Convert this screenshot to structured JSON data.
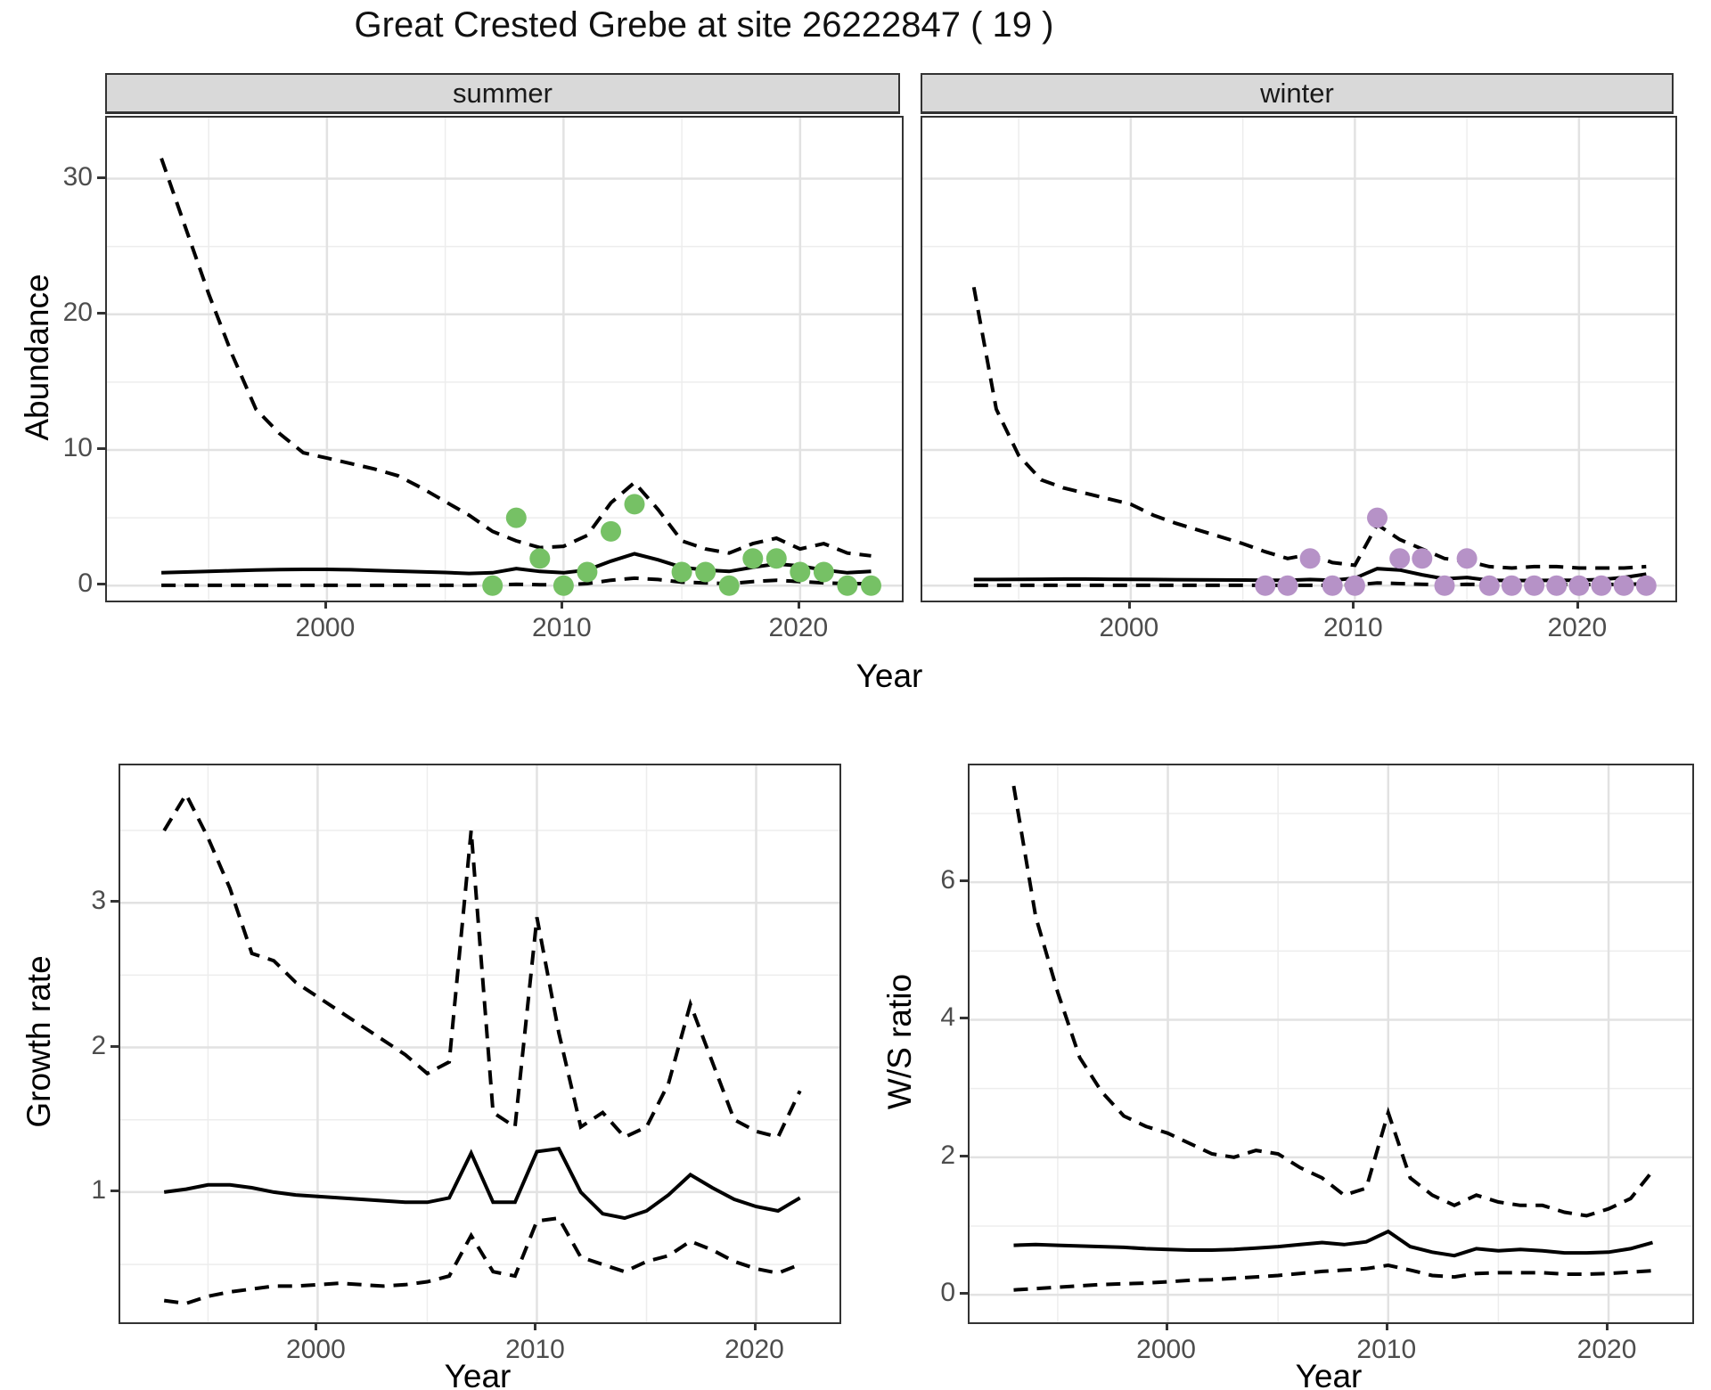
{
  "title": "Great Crested Grebe at site 26222847 ( 19 )",
  "colors": {
    "summer_points": "#76c165",
    "winter_points": "#b692c7",
    "line": "#000000",
    "strip_bg": "#d9d9d9",
    "grid_major": "#e2e2e2",
    "grid_minor": "#ededed",
    "border": "#333333"
  },
  "top": {
    "y_label": "Abundance",
    "x_label": "Year",
    "facets": [
      "summer",
      "winter"
    ]
  },
  "bottom_left": {
    "y_label": "Growth rate",
    "x_label": "Year"
  },
  "bottom_right": {
    "y_label": "W/S ratio",
    "x_label": "Year"
  },
  "chart_data": [
    {
      "name": "abundance-summer",
      "panel_key": "abundance_summer",
      "type": "line",
      "facet": "summer",
      "xlabel": "Year",
      "ylabel": "Abundance",
      "x_domain": [
        1990.7,
        2024.3
      ],
      "y_domain": [
        -1.1,
        34.5
      ],
      "x_ticks": [
        2000,
        2010,
        2020
      ],
      "x_minor_ticks": [
        1995,
        2005,
        2015
      ],
      "y_ticks": [
        0,
        10,
        20,
        30
      ],
      "y_minor_ticks": [
        5,
        15,
        25
      ],
      "years": [
        1993,
        1994,
        1995,
        1996,
        1997,
        1998,
        1999,
        2000,
        2001,
        2002,
        2003,
        2004,
        2005,
        2006,
        2007,
        2008,
        2009,
        2010,
        2011,
        2012,
        2013,
        2014,
        2015,
        2016,
        2017,
        2018,
        2019,
        2020,
        2021,
        2022,
        2023
      ],
      "upper_ci": [
        31.5,
        26.5,
        21.5,
        17,
        13,
        11.2,
        9.8,
        9.4,
        9.0,
        8.6,
        8.1,
        7.2,
        6.2,
        5.2,
        4.0,
        3.3,
        2.8,
        2.9,
        3.7,
        6.1,
        7.6,
        5.6,
        3.3,
        2.7,
        2.4,
        3.1,
        3.5,
        2.7,
        3.1,
        2.4,
        2.2
      ],
      "median": [
        0.95,
        1.0,
        1.05,
        1.1,
        1.15,
        1.18,
        1.2,
        1.2,
        1.17,
        1.12,
        1.07,
        1.02,
        0.97,
        0.9,
        0.95,
        1.25,
        1.05,
        0.95,
        1.15,
        1.8,
        2.35,
        1.9,
        1.35,
        1.15,
        1.05,
        1.35,
        1.6,
        1.45,
        1.15,
        0.95,
        1.05
      ],
      "lower_ci": [
        0.02,
        0.02,
        0.02,
        0.02,
        0.02,
        0.02,
        0.02,
        0.02,
        0.02,
        0.02,
        0.02,
        0.02,
        0.02,
        0.02,
        0.05,
        0.1,
        0.07,
        0.05,
        0.15,
        0.4,
        0.55,
        0.45,
        0.25,
        0.2,
        0.15,
        0.3,
        0.4,
        0.3,
        0.2,
        0.15,
        0.15
      ],
      "observed": {
        "color_key": "summer_points",
        "points": [
          [
            2007,
            0
          ],
          [
            2008,
            5
          ],
          [
            2009,
            2
          ],
          [
            2010,
            0
          ],
          [
            2011,
            1
          ],
          [
            2012,
            4
          ],
          [
            2013,
            6
          ],
          [
            2015,
            1
          ],
          [
            2016,
            1
          ],
          [
            2017,
            0
          ],
          [
            2018,
            2
          ],
          [
            2019,
            2
          ],
          [
            2020,
            1
          ],
          [
            2021,
            1
          ],
          [
            2022,
            0
          ],
          [
            2023,
            0
          ]
        ]
      }
    },
    {
      "name": "abundance-winter",
      "panel_key": "abundance_winter",
      "type": "line",
      "facet": "winter",
      "xlabel": "Year",
      "ylabel": "Abundance",
      "x_domain": [
        1990.7,
        2024.3
      ],
      "y_domain": [
        -1.1,
        34.5
      ],
      "x_ticks": [
        2000,
        2010,
        2020
      ],
      "x_minor_ticks": [
        1995,
        2005,
        2015
      ],
      "y_ticks": [
        0,
        10,
        20,
        30
      ],
      "y_minor_ticks": [
        5,
        15,
        25
      ],
      "years": [
        1993,
        1994,
        1995,
        1996,
        1997,
        1998,
        1999,
        2000,
        2001,
        2002,
        2003,
        2004,
        2005,
        2006,
        2007,
        2008,
        2009,
        2010,
        2011,
        2012,
        2013,
        2014,
        2015,
        2016,
        2017,
        2018,
        2019,
        2020,
        2021,
        2022,
        2023
      ],
      "upper_ci": [
        22,
        13,
        9.6,
        7.8,
        7.2,
        6.8,
        6.4,
        6.0,
        5.2,
        4.6,
        4.1,
        3.6,
        3.1,
        2.5,
        2.0,
        2.3,
        1.7,
        1.5,
        4.5,
        3.4,
        2.7,
        2.0,
        1.8,
        1.4,
        1.3,
        1.4,
        1.4,
        1.3,
        1.3,
        1.3,
        1.4
      ],
      "median": [
        0.45,
        0.45,
        0.46,
        0.47,
        0.48,
        0.48,
        0.47,
        0.46,
        0.45,
        0.44,
        0.43,
        0.42,
        0.41,
        0.4,
        0.4,
        0.45,
        0.4,
        0.55,
        1.25,
        1.15,
        0.8,
        0.5,
        0.6,
        0.4,
        0.38,
        0.38,
        0.4,
        0.4,
        0.45,
        0.6,
        0.85
      ],
      "lower_ci": [
        0.02,
        0.02,
        0.02,
        0.02,
        0.02,
        0.02,
        0.02,
        0.02,
        0.02,
        0.02,
        0.02,
        0.02,
        0.02,
        0.02,
        0.02,
        0.02,
        0.02,
        0.05,
        0.2,
        0.15,
        0.1,
        0.05,
        0.1,
        0.07,
        0.07,
        0.07,
        0.08,
        0.08,
        0.08,
        0.1,
        0.12
      ],
      "observed": {
        "color_key": "winter_points",
        "points": [
          [
            2006,
            0
          ],
          [
            2007,
            0
          ],
          [
            2008,
            2
          ],
          [
            2009,
            0
          ],
          [
            2010,
            0
          ],
          [
            2011,
            5
          ],
          [
            2012,
            2
          ],
          [
            2013,
            2
          ],
          [
            2014,
            0
          ],
          [
            2015,
            2
          ],
          [
            2016,
            0
          ],
          [
            2017,
            0
          ],
          [
            2018,
            0
          ],
          [
            2019,
            0
          ],
          [
            2020,
            0
          ],
          [
            2021,
            0
          ],
          [
            2022,
            0
          ],
          [
            2023,
            0
          ]
        ]
      }
    },
    {
      "name": "growth-rate",
      "panel_key": "growth_rate",
      "type": "line",
      "xlabel": "Year",
      "ylabel": "Growth rate",
      "x_domain": [
        1991.0,
        2023.8
      ],
      "y_domain": [
        0.1,
        3.95
      ],
      "x_ticks": [
        2000,
        2010,
        2020
      ],
      "x_minor_ticks": [
        1995,
        2005,
        2015
      ],
      "y_ticks": [
        1,
        2,
        3
      ],
      "y_minor_ticks": [
        0.5,
        1.5,
        2.5,
        3.5
      ],
      "years": [
        1993,
        1994,
        1995,
        1996,
        1997,
        1998,
        1999,
        2000,
        2001,
        2002,
        2003,
        2004,
        2005,
        2006,
        2007,
        2008,
        2009,
        2010,
        2011,
        2012,
        2013,
        2014,
        2015,
        2016,
        2017,
        2018,
        2019,
        2020,
        2021,
        2022
      ],
      "upper_ci": [
        3.5,
        3.75,
        3.45,
        3.1,
        2.65,
        2.6,
        2.45,
        2.35,
        2.25,
        2.15,
        2.05,
        1.95,
        1.82,
        1.9,
        3.5,
        1.55,
        1.45,
        2.9,
        2.1,
        1.45,
        1.55,
        1.38,
        1.45,
        1.75,
        2.3,
        1.9,
        1.5,
        1.42,
        1.38,
        1.7
      ],
      "median": [
        1.0,
        1.02,
        1.05,
        1.05,
        1.03,
        1.0,
        0.98,
        0.97,
        0.96,
        0.95,
        0.94,
        0.93,
        0.93,
        0.96,
        1.27,
        0.93,
        0.93,
        1.28,
        1.3,
        1.0,
        0.85,
        0.82,
        0.87,
        0.98,
        1.12,
        1.03,
        0.95,
        0.9,
        0.87,
        0.96
      ],
      "lower_ci": [
        0.25,
        0.23,
        0.28,
        0.31,
        0.33,
        0.35,
        0.35,
        0.36,
        0.37,
        0.36,
        0.35,
        0.36,
        0.38,
        0.42,
        0.7,
        0.45,
        0.42,
        0.8,
        0.82,
        0.55,
        0.5,
        0.45,
        0.52,
        0.56,
        0.66,
        0.6,
        0.52,
        0.47,
        0.44,
        0.5
      ],
      "observed": null
    },
    {
      "name": "ws-ratio",
      "panel_key": "ws_ratio",
      "type": "line",
      "xlabel": "Year",
      "ylabel": "W/S ratio",
      "x_domain": [
        1991.0,
        2023.8
      ],
      "y_domain": [
        -0.4,
        7.7
      ],
      "x_ticks": [
        2000,
        2010,
        2020
      ],
      "x_minor_ticks": [
        1995,
        2005,
        2015
      ],
      "y_ticks": [
        0,
        2,
        4,
        6
      ],
      "y_minor_ticks": [
        1,
        3,
        5,
        7
      ],
      "years": [
        1993,
        1994,
        1995,
        1996,
        1997,
        1998,
        1999,
        2000,
        2001,
        2002,
        2003,
        2004,
        2005,
        2006,
        2007,
        2008,
        2009,
        2010,
        2011,
        2012,
        2013,
        2014,
        2015,
        2016,
        2017,
        2018,
        2019,
        2020,
        2021,
        2022
      ],
      "upper_ci": [
        7.4,
        5.5,
        4.4,
        3.45,
        2.95,
        2.6,
        2.45,
        2.35,
        2.2,
        2.05,
        2.0,
        2.1,
        2.05,
        1.85,
        1.7,
        1.45,
        1.55,
        2.65,
        1.7,
        1.45,
        1.3,
        1.45,
        1.35,
        1.3,
        1.3,
        1.2,
        1.15,
        1.25,
        1.4,
        1.8
      ],
      "median": [
        0.72,
        0.73,
        0.72,
        0.71,
        0.7,
        0.69,
        0.67,
        0.66,
        0.65,
        0.65,
        0.66,
        0.68,
        0.7,
        0.73,
        0.76,
        0.73,
        0.77,
        0.92,
        0.7,
        0.62,
        0.57,
        0.67,
        0.64,
        0.66,
        0.64,
        0.61,
        0.61,
        0.62,
        0.67,
        0.76
      ],
      "lower_ci": [
        0.07,
        0.09,
        0.11,
        0.13,
        0.15,
        0.16,
        0.17,
        0.19,
        0.21,
        0.22,
        0.24,
        0.26,
        0.28,
        0.31,
        0.34,
        0.36,
        0.38,
        0.43,
        0.36,
        0.28,
        0.26,
        0.31,
        0.32,
        0.32,
        0.32,
        0.3,
        0.3,
        0.31,
        0.33,
        0.35
      ],
      "observed": null
    }
  ]
}
